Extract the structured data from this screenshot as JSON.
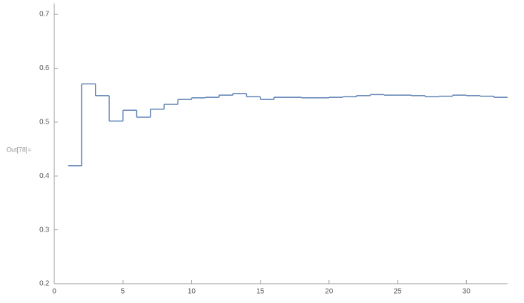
{
  "output_label": "Out[78]=",
  "chart_data": {
    "type": "step",
    "color": "#5e81b5",
    "x": [
      1,
      2,
      3,
      4,
      5,
      6,
      7,
      8,
      9,
      10,
      11,
      12,
      13,
      14,
      15,
      16,
      17,
      18,
      19,
      20,
      21,
      22,
      23,
      24,
      25,
      26,
      27,
      28,
      29,
      30,
      31,
      32
    ],
    "values": [
      0.419,
      0.571,
      0.549,
      0.502,
      0.522,
      0.509,
      0.524,
      0.533,
      0.542,
      0.545,
      0.546,
      0.55,
      0.553,
      0.547,
      0.542,
      0.546,
      0.546,
      0.545,
      0.545,
      0.546,
      0.547,
      0.549,
      0.551,
      0.55,
      0.55,
      0.549,
      0.547,
      0.548,
      0.55,
      0.549,
      0.548,
      0.546
    ],
    "xlim": [
      0,
      33
    ],
    "ylim": [
      0.2,
      0.72
    ],
    "xticks": [
      0,
      5,
      10,
      15,
      20,
      25,
      30
    ],
    "yticks": [
      0.2,
      0.3,
      0.4,
      0.5,
      0.6,
      0.7
    ]
  }
}
